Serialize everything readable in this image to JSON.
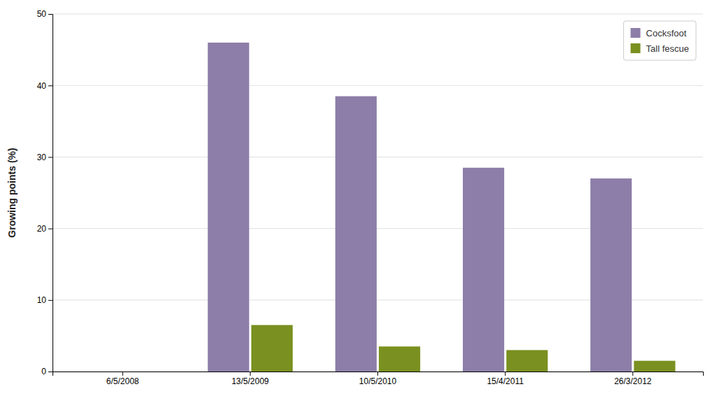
{
  "chart_data": {
    "type": "bar",
    "categories": [
      "6/5/2008",
      "13/5/2009",
      "10/5/2010",
      "15/4/2011",
      "26/3/2012"
    ],
    "series": [
      {
        "name": "Cocksfoot",
        "color": "#8C7EA8",
        "values": [
          0,
          46.0,
          38.5,
          28.5,
          27.0
        ]
      },
      {
        "name": "Tall fescue",
        "color": "#7A9020",
        "values": [
          0,
          6.5,
          3.5,
          3.0,
          1.5
        ]
      }
    ],
    "ylabel": "Growing points (%)",
    "ylim": [
      0,
      50
    ],
    "yticks": [
      0,
      10,
      20,
      30,
      40,
      50
    ],
    "grid": true,
    "legend": "upper right"
  }
}
